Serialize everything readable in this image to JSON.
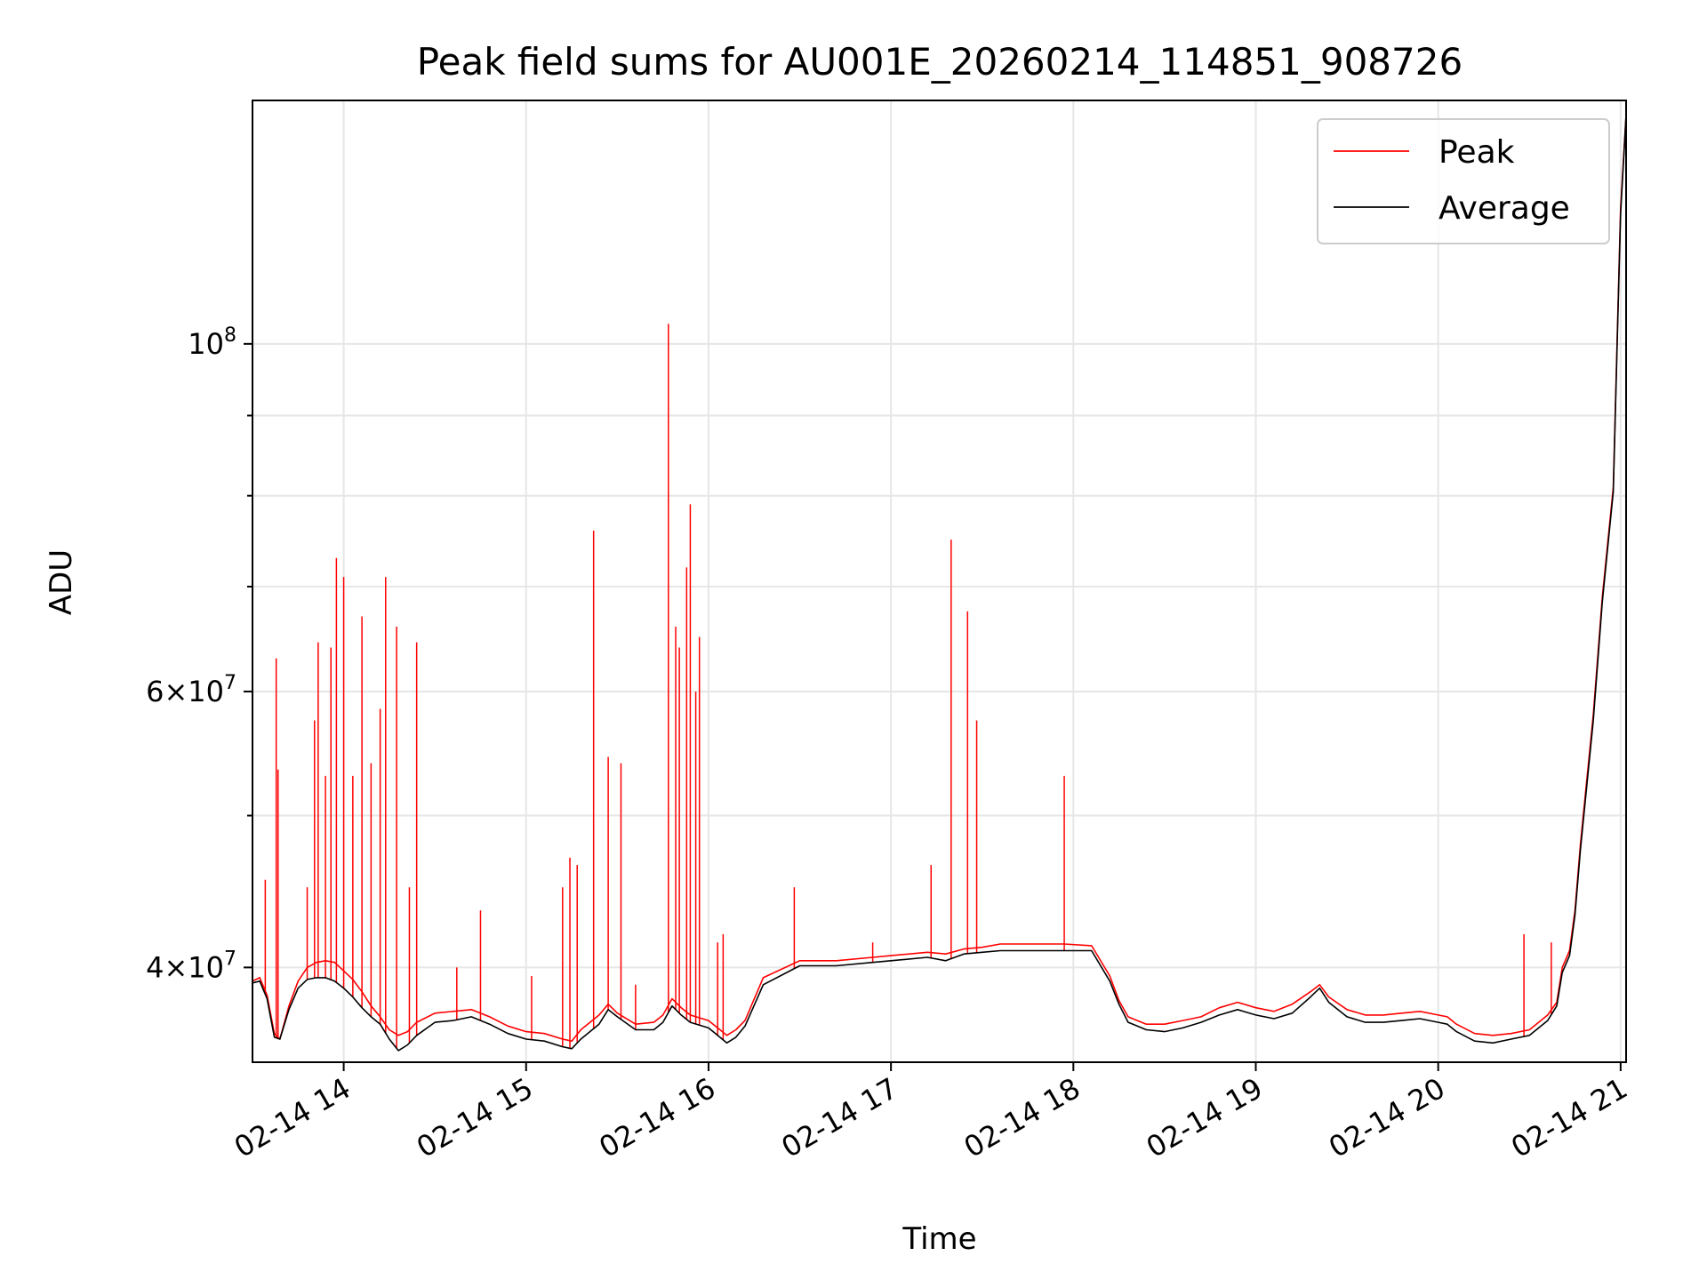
{
  "chart_data": {
    "type": "line",
    "title": "Peak field sums for AU001E_20260214_114851_908726",
    "xlabel": "Time",
    "ylabel": "ADU",
    "yscale": "log",
    "xlim": [
      13.5,
      21.03
    ],
    "ylim": [
      34800000,
      143000000
    ],
    "x_ticks": [
      {
        "value": 14,
        "label": "02-14 14"
      },
      {
        "value": 15,
        "label": "02-14 15"
      },
      {
        "value": 16,
        "label": "02-14 16"
      },
      {
        "value": 17,
        "label": "02-14 17"
      },
      {
        "value": 18,
        "label": "02-14 18"
      },
      {
        "value": 19,
        "label": "02-14 19"
      },
      {
        "value": 20,
        "label": "02-14 20"
      },
      {
        "value": 21,
        "label": "02-14 21"
      }
    ],
    "y_major_ticks": [
      {
        "value": 40000000,
        "mant": "4",
        "exp": "7"
      },
      {
        "value": 60000000,
        "mant": "6",
        "exp": "7"
      },
      {
        "value": 100000000,
        "mant": "",
        "exp": "8"
      }
    ],
    "y_minor_ticks": [
      50000000,
      70000000,
      80000000,
      90000000
    ],
    "grid": true,
    "legend_position": "upper right",
    "series": [
      {
        "name": "Peak",
        "color": "#ff0000",
        "x": [
          13.5,
          13.54,
          13.58,
          13.62,
          13.65,
          13.7,
          13.75,
          13.8,
          13.85,
          13.9,
          13.95,
          14.0,
          14.05,
          14.1,
          14.15,
          14.2,
          14.25,
          14.3,
          14.35,
          14.4,
          14.5,
          14.6,
          14.7,
          14.8,
          14.9,
          15.0,
          15.1,
          15.2,
          15.25,
          15.3,
          15.4,
          15.45,
          15.5,
          15.6,
          15.7,
          15.75,
          15.8,
          15.85,
          15.9,
          16.0,
          16.05,
          16.1,
          16.15,
          16.2,
          16.3,
          16.5,
          16.7,
          16.9,
          17.0,
          17.2,
          17.3,
          17.4,
          17.5,
          17.6,
          17.8,
          17.95,
          18.1,
          18.2,
          18.25,
          18.3,
          18.4,
          18.5,
          18.6,
          18.7,
          18.8,
          18.9,
          19.0,
          19.1,
          19.2,
          19.3,
          19.35,
          19.4,
          19.5,
          19.6,
          19.7,
          19.8,
          19.9,
          20.0,
          20.05,
          20.1,
          20.2,
          20.3,
          20.4,
          20.5,
          20.6,
          20.65,
          20.68,
          20.72,
          20.75,
          20.78,
          20.85,
          20.9,
          20.96,
          21.0,
          21.03
        ],
        "y": [
          39200000,
          39400000,
          38400000,
          36300000,
          36000000,
          37800000,
          39200000,
          40000000,
          40300000,
          40400000,
          40300000,
          39800000,
          39300000,
          38600000,
          37800000,
          37200000,
          36500000,
          36200000,
          36400000,
          36900000,
          37400000,
          37500000,
          37600000,
          37200000,
          36700000,
          36400000,
          36300000,
          36000000,
          35900000,
          36500000,
          37300000,
          37900000,
          37400000,
          36800000,
          36900000,
          37300000,
          38200000,
          37700000,
          37300000,
          37000000,
          36600000,
          36200000,
          36500000,
          37000000,
          39400000,
          40400000,
          40400000,
          40600000,
          40700000,
          40900000,
          40800000,
          41100000,
          41200000,
          41400000,
          41400000,
          41400000,
          41300000,
          39500000,
          38100000,
          37200000,
          36800000,
          36800000,
          37000000,
          37200000,
          37700000,
          38000000,
          37700000,
          37500000,
          37900000,
          38600000,
          39000000,
          38300000,
          37600000,
          37300000,
          37300000,
          37400000,
          37500000,
          37300000,
          37200000,
          36800000,
          36300000,
          36200000,
          36300000,
          36500000,
          37300000,
          38000000,
          40000000,
          41000000,
          43500000,
          48000000,
          58000000,
          69000000,
          81000000,
          122000000,
          140000000
        ]
      },
      {
        "name": "Average",
        "color": "#000000",
        "x": [
          13.5,
          13.54,
          13.58,
          13.62,
          13.65,
          13.7,
          13.75,
          13.8,
          13.85,
          13.9,
          13.95,
          14.0,
          14.05,
          14.1,
          14.15,
          14.2,
          14.25,
          14.3,
          14.35,
          14.4,
          14.5,
          14.6,
          14.7,
          14.8,
          14.9,
          15.0,
          15.1,
          15.2,
          15.25,
          15.3,
          15.4,
          15.45,
          15.5,
          15.6,
          15.7,
          15.75,
          15.8,
          15.85,
          15.9,
          16.0,
          16.05,
          16.1,
          16.15,
          16.2,
          16.3,
          16.5,
          16.7,
          16.9,
          17.0,
          17.2,
          17.3,
          17.4,
          17.5,
          17.6,
          17.8,
          17.95,
          18.1,
          18.2,
          18.25,
          18.3,
          18.4,
          18.5,
          18.6,
          18.7,
          18.8,
          18.9,
          19.0,
          19.1,
          19.2,
          19.3,
          19.35,
          19.4,
          19.5,
          19.6,
          19.7,
          19.8,
          19.9,
          20.0,
          20.05,
          20.1,
          20.2,
          20.3,
          20.4,
          20.5,
          20.6,
          20.65,
          20.68,
          20.72,
          20.75,
          20.78,
          20.85,
          20.9,
          20.96,
          21.0,
          21.03
        ],
        "y": [
          39100000,
          39200000,
          38200000,
          36100000,
          36000000,
          37600000,
          38800000,
          39300000,
          39400000,
          39400000,
          39200000,
          38800000,
          38300000,
          37700000,
          37200000,
          36800000,
          36000000,
          35400000,
          35700000,
          36200000,
          36900000,
          37000000,
          37200000,
          36800000,
          36300000,
          36000000,
          35900000,
          35600000,
          35500000,
          36000000,
          36800000,
          37600000,
          37200000,
          36500000,
          36500000,
          36900000,
          37800000,
          37300000,
          36900000,
          36600000,
          36200000,
          35800000,
          36100000,
          36700000,
          39000000,
          40100000,
          40100000,
          40300000,
          40400000,
          40600000,
          40400000,
          40800000,
          40900000,
          41000000,
          41000000,
          41000000,
          41000000,
          39200000,
          37900000,
          36900000,
          36500000,
          36400000,
          36600000,
          36900000,
          37300000,
          37600000,
          37300000,
          37100000,
          37400000,
          38300000,
          38800000,
          38000000,
          37200000,
          36900000,
          36900000,
          37000000,
          37100000,
          36900000,
          36800000,
          36400000,
          35900000,
          35800000,
          36000000,
          36200000,
          37000000,
          37800000,
          39700000,
          40700000,
          43200000,
          47600000,
          57500000,
          68500000,
          80500000,
          121000000,
          140000000
        ]
      }
    ],
    "peak_spikes": [
      {
        "x": 13.57,
        "y": 45500000
      },
      {
        "x": 13.63,
        "y": 63000000
      },
      {
        "x": 13.64,
        "y": 53500000
      },
      {
        "x": 13.8,
        "y": 45000000
      },
      {
        "x": 13.84,
        "y": 57500000
      },
      {
        "x": 13.86,
        "y": 64500000
      },
      {
        "x": 13.9,
        "y": 53000000
      },
      {
        "x": 13.93,
        "y": 64000000
      },
      {
        "x": 13.96,
        "y": 73000000
      },
      {
        "x": 14.0,
        "y": 71000000
      },
      {
        "x": 14.05,
        "y": 53000000
      },
      {
        "x": 14.1,
        "y": 67000000
      },
      {
        "x": 14.15,
        "y": 54000000
      },
      {
        "x": 14.2,
        "y": 58500000
      },
      {
        "x": 14.23,
        "y": 71000000
      },
      {
        "x": 14.29,
        "y": 66000000
      },
      {
        "x": 14.4,
        "y": 64500000
      },
      {
        "x": 14.36,
        "y": 45000000
      },
      {
        "x": 14.62,
        "y": 40000000
      },
      {
        "x": 14.75,
        "y": 43500000
      },
      {
        "x": 15.03,
        "y": 39500000
      },
      {
        "x": 15.2,
        "y": 45000000
      },
      {
        "x": 15.24,
        "y": 47000000
      },
      {
        "x": 15.28,
        "y": 46500000
      },
      {
        "x": 15.37,
        "y": 76000000
      },
      {
        "x": 15.45,
        "y": 54500000
      },
      {
        "x": 15.52,
        "y": 54000000
      },
      {
        "x": 15.6,
        "y": 39000000
      },
      {
        "x": 15.78,
        "y": 103000000
      },
      {
        "x": 15.82,
        "y": 66000000
      },
      {
        "x": 15.84,
        "y": 64000000
      },
      {
        "x": 15.88,
        "y": 72000000
      },
      {
        "x": 15.9,
        "y": 79000000
      },
      {
        "x": 15.93,
        "y": 60000000
      },
      {
        "x": 15.95,
        "y": 65000000
      },
      {
        "x": 16.05,
        "y": 41500000
      },
      {
        "x": 16.08,
        "y": 42000000
      },
      {
        "x": 16.47,
        "y": 45000000
      },
      {
        "x": 16.9,
        "y": 41500000
      },
      {
        "x": 17.22,
        "y": 46500000
      },
      {
        "x": 17.33,
        "y": 75000000
      },
      {
        "x": 17.42,
        "y": 67500000
      },
      {
        "x": 17.47,
        "y": 57500000
      },
      {
        "x": 17.95,
        "y": 53000000
      },
      {
        "x": 20.47,
        "y": 42000000
      },
      {
        "x": 20.62,
        "y": 41500000
      }
    ]
  },
  "legend": {
    "peak_label": "Peak",
    "average_label": "Average",
    "peak_color": "#ff0000",
    "average_color": "#000000"
  }
}
